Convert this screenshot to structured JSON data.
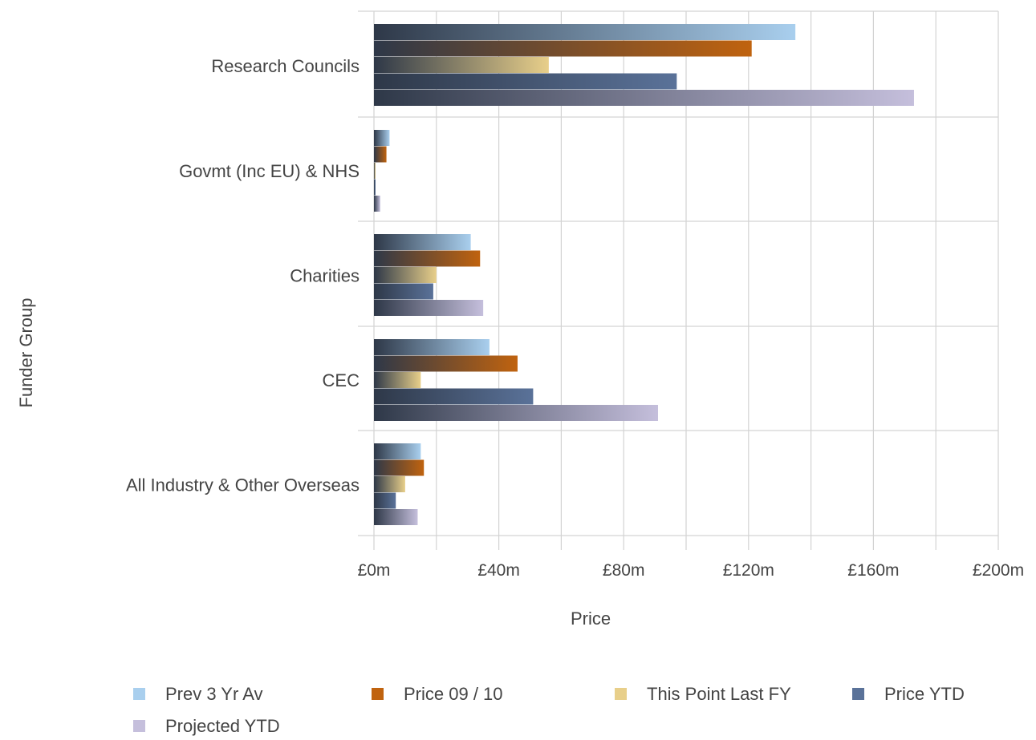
{
  "chart_data": {
    "type": "bar",
    "orientation": "horizontal",
    "xlabel": "Price",
    "ylabel": "Funder Group",
    "xlim": [
      0,
      200
    ],
    "x_ticks": [
      "£0m",
      "£40m",
      "£80m",
      "£120m",
      "£160m",
      "£200m"
    ],
    "x_tick_values": [
      0,
      40,
      80,
      120,
      160,
      200
    ],
    "grid": true,
    "legend_position": "bottom",
    "categories": [
      "Research Councils",
      "Govmt (Inc EU) & NHS",
      "Charities",
      "CEC",
      "All Industry & Other Overseas"
    ],
    "series": [
      {
        "name": "Prev 3 Yr Av",
        "color": "#a9cfee",
        "values": [
          135,
          5,
          31,
          37,
          15
        ]
      },
      {
        "name": "Price 09 / 10",
        "color": "#c0630f",
        "values": [
          121,
          4,
          34,
          46,
          16
        ]
      },
      {
        "name": "This Point Last FY",
        "color": "#e8cf8a",
        "values": [
          56,
          0.5,
          20,
          15,
          10
        ]
      },
      {
        "name": "Price YTD",
        "color": "#5a7299",
        "values": [
          97,
          0.5,
          19,
          51,
          7
        ]
      },
      {
        "name": "Projected YTD",
        "color": "#c5bfdc",
        "values": [
          173,
          2,
          35,
          91,
          14
        ]
      }
    ]
  }
}
